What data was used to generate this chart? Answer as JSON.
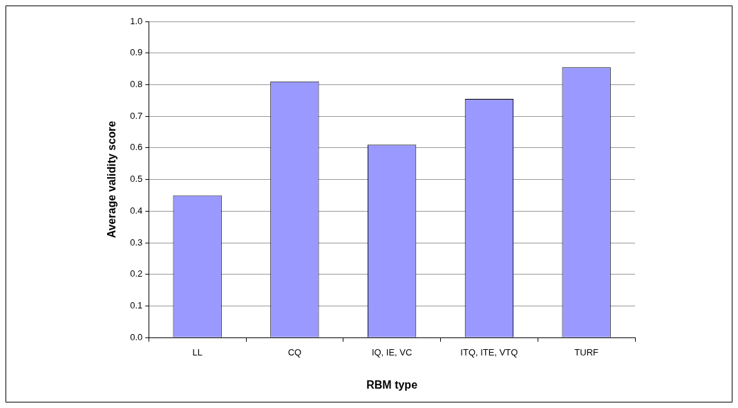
{
  "chart_data": {
    "type": "bar",
    "xlabel": "RBM type",
    "ylabel": "Average validity score",
    "categories": [
      "LL",
      "CQ",
      "IQ, IE, VC",
      "ITQ, ITE, VTQ",
      "TURF"
    ],
    "values": [
      0.45,
      0.81,
      0.61,
      0.755,
      0.855
    ],
    "color": "#9999ff",
    "ylim": [
      0,
      1
    ],
    "yticks": [
      {
        "value": 0,
        "label": "0.0"
      },
      {
        "value": 0.1,
        "label": "0.1"
      },
      {
        "value": 0.2,
        "label": "0.2"
      },
      {
        "value": 0.3,
        "label": "0.3"
      },
      {
        "value": 0.4,
        "label": "0.4"
      },
      {
        "value": 0.5,
        "label": "0.5"
      },
      {
        "value": 0.6,
        "label": "0.6"
      },
      {
        "value": 0.7,
        "label": "0.7"
      },
      {
        "value": 0.8,
        "label": "0.8"
      },
      {
        "value": 0.9,
        "label": "0.9"
      },
      {
        "value": 1,
        "label": "1.0"
      }
    ],
    "grid": "y"
  }
}
